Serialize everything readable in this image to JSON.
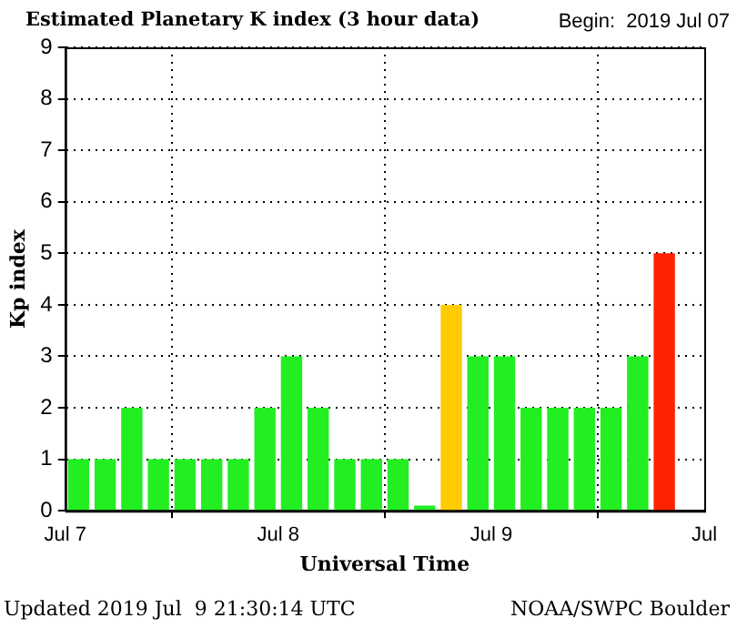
{
  "chart_data": {
    "type": "bar",
    "title": "Estimated Planetary K index (3 hour data)",
    "subtitle": "Begin:  2019 Jul 07",
    "xlabel": "Universal Time",
    "ylabel": "Kp index",
    "annotations": [
      "Updated 2019 Jul  9 21:30:14 UTC",
      "NOAA/SWPC Boulder"
    ],
    "x": [
      "2019-07-07T01:30",
      "2019-07-07T04:30",
      "2019-07-07T07:30",
      "2019-07-07T10:30",
      "2019-07-07T13:30",
      "2019-07-07T16:30",
      "2019-07-07T19:30",
      "2019-07-07T22:30",
      "2019-07-08T01:30",
      "2019-07-08T04:30",
      "2019-07-08T07:30",
      "2019-07-08T10:30",
      "2019-07-08T13:30",
      "2019-07-08T16:30",
      "2019-07-08T19:30",
      "2019-07-08T22:30",
      "2019-07-09T01:30",
      "2019-07-09T04:30",
      "2019-07-09T07:30",
      "2019-07-09T10:30",
      "2019-07-09T13:30",
      "2019-07-09T16:30",
      "2019-07-09T19:30"
    ],
    "values": [
      1,
      1,
      2,
      1,
      1,
      1,
      1,
      2,
      3,
      2,
      1,
      1,
      1,
      0.1,
      4,
      3,
      3,
      2,
      2,
      2,
      2,
      3,
      5
    ],
    "colors": [
      "#22ee22",
      "#22ee22",
      "#22ee22",
      "#22ee22",
      "#22ee22",
      "#22ee22",
      "#22ee22",
      "#22ee22",
      "#22ee22",
      "#22ee22",
      "#22ee22",
      "#22ee22",
      "#22ee22",
      "#22ee22",
      "#ffcc00",
      "#22ee22",
      "#22ee22",
      "#22ee22",
      "#22ee22",
      "#22ee22",
      "#22ee22",
      "#22ee22",
      "#ff2200"
    ],
    "xlim": [
      "2019-07-07T00:00",
      "2019-07-10T00:00"
    ],
    "xticks": [
      {
        "value": "2019-07-07T00:00",
        "label": "Jul 7"
      },
      {
        "value": "2019-07-08T00:00",
        "label": "Jul 8"
      },
      {
        "value": "2019-07-09T00:00",
        "label": "Jul 9"
      },
      {
        "value": "2019-07-10T00:00",
        "label": "Jul"
      }
    ],
    "ylim": [
      0,
      9
    ],
    "yticks": [
      0,
      1,
      2,
      3,
      4,
      5,
      6,
      7,
      8,
      9
    ],
    "grid": true
  }
}
